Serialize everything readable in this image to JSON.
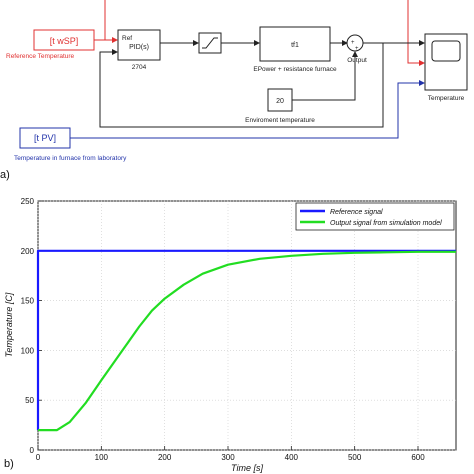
{
  "panel_a": {
    "label": "a)",
    "blocks": {
      "setpoint": "[t wSP]",
      "setpoint_caption": "Reference Temperature",
      "pid_ref": "Ref",
      "pid_name": "PID(s)",
      "pid_caption": "2704",
      "tf": "tf1",
      "tf_caption": "EPower + resistance furnace",
      "sum_caption": "Output",
      "env_value": "20",
      "env_caption": "Enviroment temperature",
      "scope_caption": "Temperature",
      "pv": "[t PV]",
      "pv_caption": "Temperature in furnace from laboratory"
    },
    "colors": {
      "red": "#e03030",
      "blue": "#2233aa",
      "black": "#222222"
    }
  },
  "panel_b": {
    "label": "b)",
    "chart_data": {
      "type": "line",
      "xlabel": "Time [s]",
      "ylabel": "Temperature [C]",
      "xlim": [
        0,
        660
      ],
      "ylim": [
        0,
        250
      ],
      "xticks": [
        0,
        100,
        200,
        300,
        400,
        500,
        600
      ],
      "yticks": [
        0,
        50,
        100,
        150,
        200,
        250
      ],
      "grid": true,
      "legend_position": "top-right",
      "series": [
        {
          "name": "Reference signal",
          "color": "#1a1aff",
          "x": [
            0,
            0,
            660
          ],
          "y": [
            20,
            200,
            200
          ]
        },
        {
          "name": "Output signal from simulation model",
          "color": "#22dd22",
          "x": [
            0,
            30,
            50,
            75,
            100,
            130,
            160,
            180,
            200,
            230,
            260,
            300,
            350,
            400,
            450,
            500,
            550,
            600,
            660
          ],
          "y": [
            20,
            20,
            28,
            47,
            70,
            97,
            124,
            140,
            152,
            166,
            177,
            186,
            192,
            195,
            197,
            198,
            198.5,
            199,
            199
          ]
        }
      ]
    }
  }
}
